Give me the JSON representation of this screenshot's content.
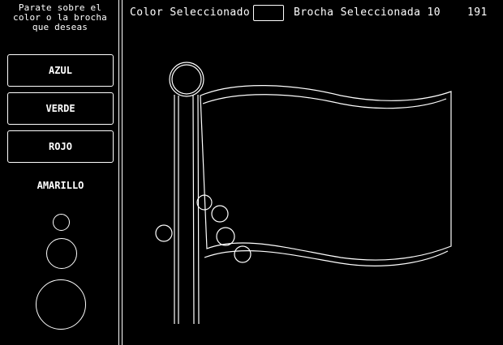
{
  "sidebar": {
    "instructions": "Parate sobre el\ncolor o la brocha\nque deseas",
    "colors": [
      {
        "label": "AZUL"
      },
      {
        "label": "VERDE"
      },
      {
        "label": "ROJO"
      },
      {
        "label": "AMARILLO"
      }
    ]
  },
  "topbar": {
    "color_label": "Color Seleccionado",
    "selected_color": "#000000",
    "brush_label": "Brocha Seleccionada 10",
    "counter": "191"
  }
}
